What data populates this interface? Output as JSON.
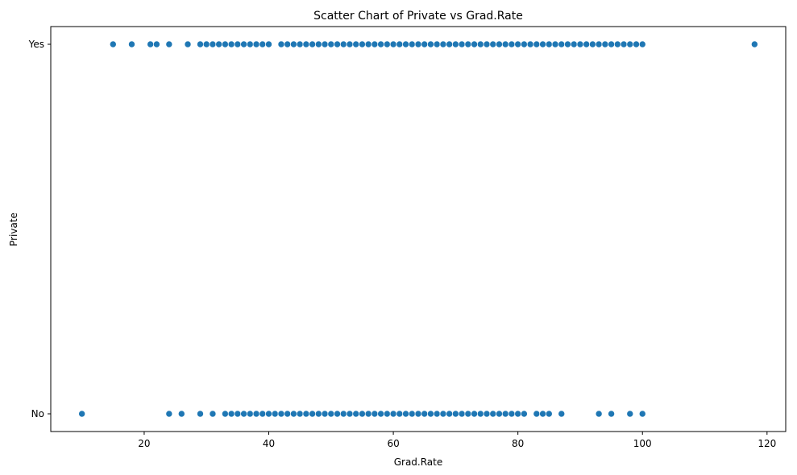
{
  "chart_data": {
    "type": "scatter",
    "title": "Scatter Chart of Private vs Grad.Rate",
    "xlabel": "Grad.Rate",
    "ylabel": "Private",
    "xlim": [
      5,
      123
    ],
    "x_ticks": [
      20,
      40,
      60,
      80,
      100,
      120
    ],
    "y_categories": [
      "No",
      "Yes"
    ],
    "grid": false,
    "color": "#1f77b4",
    "series": [
      {
        "category": "Yes",
        "x": [
          15,
          18,
          21,
          22,
          24,
          27,
          29,
          30,
          31,
          32,
          33,
          34,
          35,
          36,
          37,
          38,
          39,
          40,
          42,
          43,
          44,
          45,
          46,
          47,
          48,
          49,
          50,
          51,
          52,
          53,
          54,
          55,
          56,
          57,
          58,
          59,
          60,
          61,
          62,
          63,
          64,
          65,
          66,
          67,
          68,
          69,
          70,
          71,
          72,
          73,
          74,
          75,
          76,
          77,
          78,
          79,
          80,
          81,
          82,
          83,
          84,
          85,
          86,
          87,
          88,
          89,
          90,
          91,
          92,
          93,
          94,
          95,
          96,
          97,
          98,
          99,
          100,
          118
        ]
      },
      {
        "category": "No",
        "x": [
          10,
          24,
          26,
          29,
          31,
          33,
          34,
          35,
          36,
          37,
          38,
          39,
          40,
          41,
          42,
          43,
          44,
          45,
          46,
          47,
          48,
          49,
          50,
          51,
          52,
          53,
          54,
          55,
          56,
          57,
          58,
          59,
          60,
          61,
          62,
          63,
          64,
          65,
          66,
          67,
          68,
          69,
          70,
          71,
          72,
          73,
          74,
          75,
          76,
          77,
          78,
          79,
          80,
          81,
          83,
          84,
          85,
          87,
          93,
          95,
          98,
          100
        ]
      }
    ]
  }
}
